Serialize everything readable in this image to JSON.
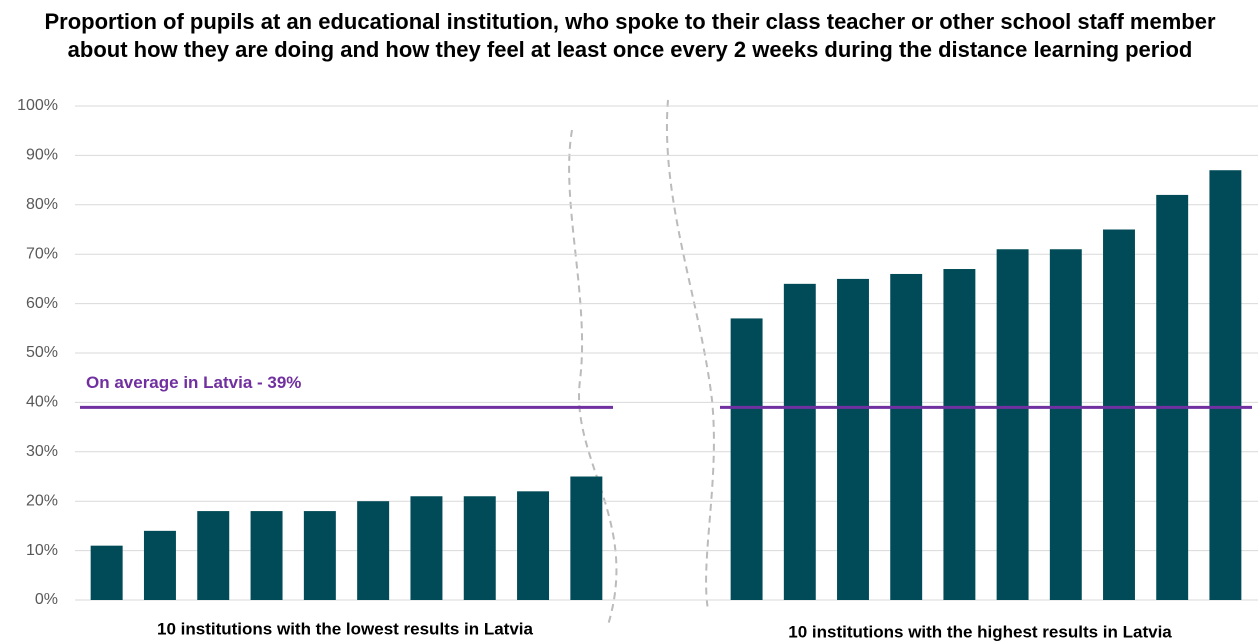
{
  "chart_data": {
    "type": "bar",
    "title": "Proportion of pupils at an educational institution, who spoke to their class teacher or other school staff member about how they are doing and how they feel at least once every 2 weeks during the distance learning period",
    "groups": [
      {
        "label": "10 institutions with the lowest results in Latvia",
        "values": [
          11,
          14,
          18,
          18,
          18,
          20,
          21,
          21,
          22,
          25
        ]
      },
      {
        "label": "10 institutions with the highest results in Latvia",
        "values": [
          57,
          64,
          65,
          66,
          67,
          71,
          71,
          75,
          82,
          87
        ]
      }
    ],
    "color": "#004b57",
    "reference_line": {
      "value": 39,
      "label": "On average in Latvia - 39%",
      "color": "#7030a0"
    },
    "ylim": [
      0,
      100
    ],
    "yticks": [
      {
        "value": 0,
        "label": "0%"
      },
      {
        "value": 10,
        "label": "10%"
      },
      {
        "value": 20,
        "label": "20%"
      },
      {
        "value": 30,
        "label": "30%"
      },
      {
        "value": 40,
        "label": "40%"
      },
      {
        "value": 50,
        "label": "50%"
      },
      {
        "value": 60,
        "label": "60%"
      },
      {
        "value": 70,
        "label": "70%"
      },
      {
        "value": 80,
        "label": "80%"
      },
      {
        "value": 90,
        "label": "90%"
      },
      {
        "value": 100,
        "label": "100%"
      }
    ],
    "grid": true
  }
}
